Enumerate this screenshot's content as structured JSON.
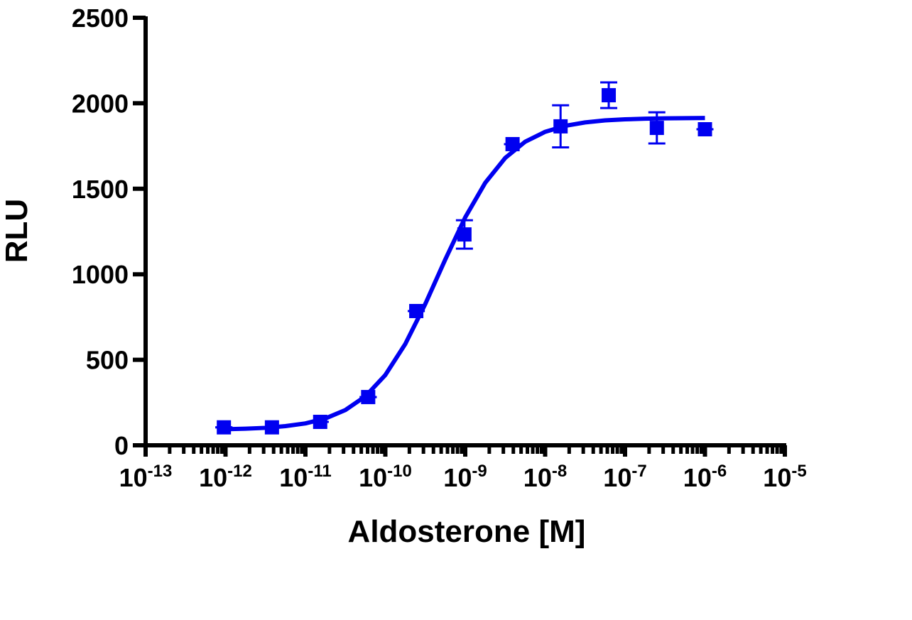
{
  "chart_data": {
    "type": "scatter",
    "x_label": "Aldosterone [M]",
    "y_label": "RLU",
    "log_x": true,
    "minor_ticks": true,
    "xlim": [
      1e-13,
      1e-05
    ],
    "xticks": [
      {
        "value": 1e-13,
        "label": "10",
        "sup": "-13"
      },
      {
        "value": 1e-12,
        "label": "10",
        "sup": "-12"
      },
      {
        "value": 1e-11,
        "label": "10",
        "sup": "-11"
      },
      {
        "value": 1e-10,
        "label": "10",
        "sup": "-10"
      },
      {
        "value": 1e-09,
        "label": "10",
        "sup": "-9"
      },
      {
        "value": 1e-08,
        "label": "10",
        "sup": "-8"
      },
      {
        "value": 1e-07,
        "label": "10",
        "sup": "-7"
      },
      {
        "value": 1e-06,
        "label": "10",
        "sup": "-6"
      },
      {
        "value": 1e-05,
        "label": "10",
        "sup": "-5"
      }
    ],
    "ylim": [
      0,
      2500
    ],
    "yticks": [
      0,
      500,
      1000,
      1500,
      2000,
      2500
    ],
    "series": [
      {
        "type": "scatter",
        "marker": "square",
        "color": "#0000f0",
        "x": [
          9.54e-13,
          3.81e-12,
          1.53e-11,
          6.1e-11,
          2.44e-10,
          9.77e-10,
          3.91e-09,
          1.56e-08,
          6.25e-08,
          2.5e-07,
          1e-06
        ],
        "values": [
          105,
          105,
          137,
          282,
          785,
          1233,
          1761,
          1865,
          2047,
          1856,
          1848
        ],
        "errors": [
          0,
          0,
          0,
          0,
          0,
          83,
          0,
          123,
          75,
          91,
          0
        ]
      },
      {
        "type": "line",
        "color": "#0000f0",
        "x": [
          1e-12,
          1.78e-12,
          3.16e-12,
          5.62e-12,
          1e-11,
          1.78e-11,
          3.16e-11,
          5.62e-11,
          1e-10,
          1.78e-10,
          3.16e-10,
          5.62e-10,
          1e-09,
          1.78e-09,
          3.16e-09,
          5.62e-09,
          1e-08,
          1.78e-08,
          3.16e-08,
          5.62e-08,
          1e-07,
          1.78e-07,
          3.16e-07,
          5.62e-07,
          1e-06
        ],
        "values": [
          94,
          97,
          102,
          112,
          128,
          157,
          206,
          286,
          411,
          593,
          826,
          1086,
          1333,
          1535,
          1680,
          1775,
          1833,
          1868,
          1888,
          1900,
          1906,
          1910,
          1912,
          1913,
          1914
        ]
      }
    ]
  }
}
